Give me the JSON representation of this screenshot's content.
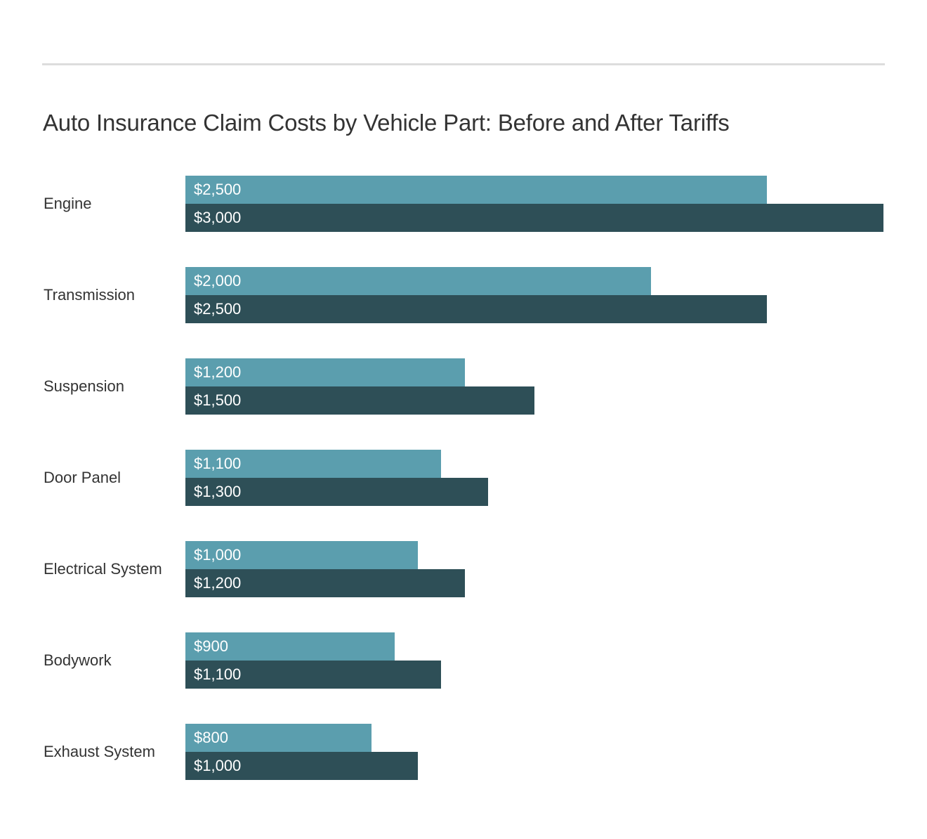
{
  "chart_data": {
    "type": "bar",
    "orientation": "horizontal",
    "title": "Auto Insurance Claim Costs by Vehicle Part: Before and After Tariffs",
    "categories": [
      "Engine",
      "Transmission",
      "Suspension",
      "Door Panel",
      "Electrical System",
      "Bodywork",
      "Exhaust System"
    ],
    "series": [
      {
        "values": [
          2500,
          2000,
          1200,
          1100,
          1000,
          900,
          800
        ],
        "labels": [
          "$2,500",
          "$2,000",
          "$1,200",
          "$1,100",
          "$1,000",
          "$900",
          "$800"
        ],
        "color": "#5b9eae"
      },
      {
        "values": [
          3000,
          2500,
          1500,
          1300,
          1200,
          1100,
          1000
        ],
        "labels": [
          "$3,000",
          "$2,500",
          "$1,500",
          "$1,300",
          "$1,200",
          "$1,100",
          "$1,000"
        ],
        "color": "#2e4f57"
      }
    ],
    "xlim": [
      0,
      3000
    ],
    "grid": false,
    "legend": "none",
    "xlabel": "",
    "ylabel": ""
  },
  "rule_color": "#dddddd"
}
